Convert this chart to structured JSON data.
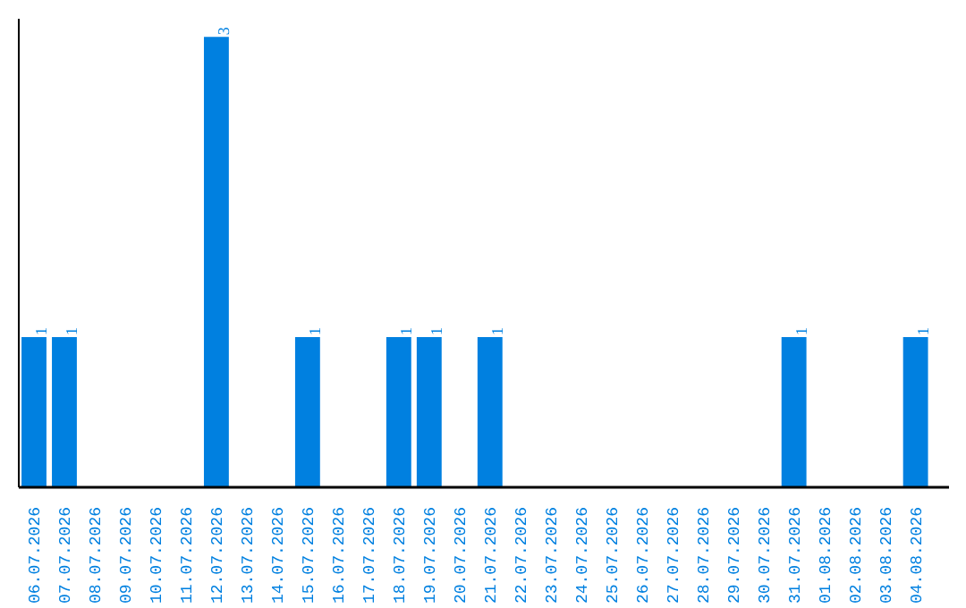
{
  "chart_data": {
    "type": "bar",
    "categories": [
      "06.07.2026",
      "07.07.2026",
      "08.07.2026",
      "09.07.2026",
      "10.07.2026",
      "11.07.2026",
      "12.07.2026",
      "13.07.2026",
      "14.07.2026",
      "15.07.2026",
      "16.07.2026",
      "17.07.2026",
      "18.07.2026",
      "19.07.2026",
      "20.07.2026",
      "21.07.2026",
      "22.07.2026",
      "23.07.2026",
      "24.07.2026",
      "25.07.2026",
      "26.07.2026",
      "27.07.2026",
      "28.07.2026",
      "29.07.2026",
      "30.07.2026",
      "31.07.2026",
      "01.08.2026",
      "02.08.2026",
      "03.08.2026",
      "04.08.2026"
    ],
    "values": [
      1,
      1,
      0,
      0,
      0,
      0,
      3,
      0,
      0,
      1,
      0,
      0,
      1,
      1,
      0,
      1,
      0,
      0,
      0,
      0,
      0,
      0,
      0,
      0,
      0,
      1,
      0,
      0,
      0,
      1
    ],
    "value_labels": [
      "1",
      "1",
      null,
      null,
      null,
      null,
      "3",
      null,
      null,
      "1",
      null,
      null,
      "1",
      "1",
      null,
      "1",
      null,
      null,
      null,
      null,
      null,
      null,
      null,
      null,
      null,
      "1",
      null,
      null,
      null,
      "1"
    ],
    "color": "#0080e0",
    "grid": false
  }
}
